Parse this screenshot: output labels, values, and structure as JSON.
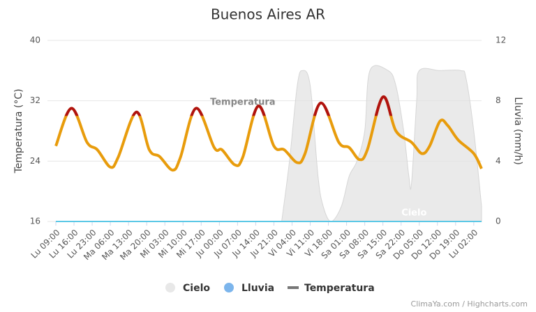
{
  "chart_data": {
    "type": "line",
    "title": "Buenos Aires AR",
    "y_label": "Temperatura (°C)",
    "y2_label": "Lluvia (mm/h)",
    "xlim": [
      0,
      164
    ],
    "xticks": [
      {
        "value": 0,
        "label": "Lu 09:00"
      },
      {
        "value": 7,
        "label": "Lu 16:00"
      },
      {
        "value": 14,
        "label": "Lu 23:00"
      },
      {
        "value": 21,
        "label": "Ma 06:00"
      },
      {
        "value": 28,
        "label": "Ma 13:00"
      },
      {
        "value": 35,
        "label": "Ma 20:00"
      },
      {
        "value": 42,
        "label": "Mi 03:00"
      },
      {
        "value": 49,
        "label": "Mi 10:00"
      },
      {
        "value": 56,
        "label": "Mi 17:00"
      },
      {
        "value": 63,
        "label": "Ju 00:00"
      },
      {
        "value": 70,
        "label": "Ju 07:00"
      },
      {
        "value": 77,
        "label": "Ju 14:00"
      },
      {
        "value": 84,
        "label": "Ju 21:00"
      },
      {
        "value": 91,
        "label": "Vi 04:00"
      },
      {
        "value": 98,
        "label": "Vi 11:00"
      },
      {
        "value": 105,
        "label": "Vi 18:00"
      },
      {
        "value": 112,
        "label": "Sa 01:00"
      },
      {
        "value": 119,
        "label": "Sa 08:00"
      },
      {
        "value": 126,
        "label": "Sa 15:00"
      },
      {
        "value": 133,
        "label": "Sa 22:00"
      },
      {
        "value": 140,
        "label": "Do 05:00"
      },
      {
        "value": 147,
        "label": "Do 12:00"
      },
      {
        "value": 154,
        "label": "Do 19:00"
      },
      {
        "value": 161,
        "label": "Lu 02:00"
      }
    ],
    "ylim": [
      16,
      40
    ],
    "yticks": [
      16,
      24,
      32,
      40
    ],
    "y2lim": [
      0,
      12
    ],
    "y2ticks": [
      0,
      4,
      8,
      12
    ],
    "grid": true,
    "series": [
      {
        "name": "Cielo",
        "color": "#e3e3e3",
        "axis": "y2",
        "kind": "area",
        "x": [
          87,
          90,
          93,
          95,
          98,
          101,
          103,
          106,
          110,
          113,
          116,
          119,
          121,
          128,
          131,
          134,
          136,
          137,
          139,
          140,
          148,
          156,
          158,
          161,
          164
        ],
        "values": [
          0,
          4,
          9,
          10,
          9,
          3,
          1,
          0,
          1,
          3,
          4,
          6,
          10,
          10,
          9,
          6,
          3,
          2.5,
          8,
          10,
          10,
          10,
          9.5,
          6,
          1
        ]
      },
      {
        "name": "Lluvia",
        "color": "#5bc8e6",
        "axis": "y2",
        "kind": "line",
        "x": [
          0,
          164
        ],
        "values": [
          0,
          0
        ]
      },
      {
        "name": "Temperatura",
        "color": "#e89c0c",
        "kind": "line",
        "zone_threshold": 30,
        "zone_color": "#b0120f",
        "x": [
          0,
          6,
          12,
          16,
          21,
          24,
          31,
          36,
          40,
          45,
          48,
          54,
          61,
          64,
          69,
          72,
          78,
          84,
          88,
          93,
          96,
          102,
          109,
          113,
          117,
          120,
          126,
          131,
          137,
          141,
          144,
          148,
          151,
          155,
          161,
          164
        ],
        "values": [
          26,
          31,
          26.5,
          25.5,
          23.2,
          24.5,
          30.5,
          25.5,
          24.6,
          22.8,
          24.5,
          31,
          25.8,
          25.5,
          23.5,
          24.5,
          31.3,
          26,
          25.5,
          23.8,
          25,
          31.7,
          26.5,
          25.8,
          24.2,
          25.5,
          32.5,
          28,
          26.5,
          25,
          26,
          29.3,
          28.7,
          26.8,
          25,
          23
        ]
      }
    ],
    "annotations": [
      {
        "text": "Temperatura",
        "x": 72,
        "y": 31.8
      },
      {
        "text": "Cielo",
        "x": 138,
        "y": 17.1
      }
    ],
    "credits": "ClimaYa.com / Highcharts.com"
  }
}
